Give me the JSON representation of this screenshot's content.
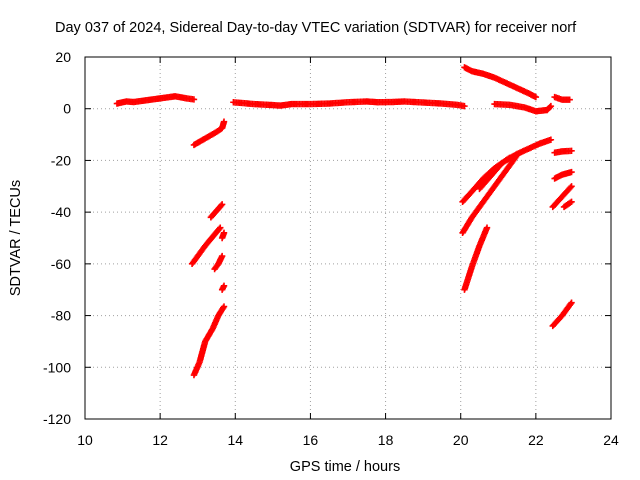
{
  "chart_data": {
    "type": "scatter",
    "title": "Day 037 of 2024, Sidereal Day-to-day VTEC variation (SDTVAR) for receiver norf",
    "xlabel": "GPS time / hours",
    "ylabel": "SDTVAR / TECUs",
    "xlim": [
      10,
      24
    ],
    "ylim": [
      -120,
      20
    ],
    "x_ticks": [
      10,
      12,
      14,
      16,
      18,
      20,
      22,
      24
    ],
    "y_ticks": [
      -120,
      -100,
      -80,
      -60,
      -40,
      -20,
      0,
      20
    ],
    "x_tick_labels": [
      "10",
      "12",
      "14",
      "16",
      "18",
      "20",
      "22",
      "24"
    ],
    "y_tick_labels": [
      "-120",
      "-100",
      "-80",
      "-60",
      "-40",
      "-20",
      "0",
      "20"
    ],
    "grid": true,
    "grid_style": "dotted",
    "marker": "plus",
    "series": [
      {
        "color": "#ff0000",
        "segments": [
          [
            [
              10.85,
              2.0
            ],
            [
              11.1,
              2.8
            ],
            [
              11.3,
              2.6
            ],
            [
              11.5,
              3.0
            ],
            [
              11.8,
              3.6
            ],
            [
              12.1,
              4.2
            ],
            [
              12.4,
              4.8
            ],
            [
              12.7,
              4.0
            ],
            [
              12.9,
              3.6
            ]
          ],
          [
            [
              12.9,
              -14
            ],
            [
              13.2,
              -11.5
            ],
            [
              13.5,
              -9
            ],
            [
              13.65,
              -7.5
            ],
            [
              13.7,
              -5
            ]
          ],
          [
            [
              12.85,
              -60
            ],
            [
              13.0,
              -57
            ],
            [
              13.2,
              -53
            ],
            [
              13.4,
              -49.5
            ],
            [
              13.6,
              -46
            ]
          ],
          [
            [
              13.35,
              -42
            ],
            [
              13.5,
              -39.5
            ],
            [
              13.65,
              -37
            ]
          ],
          [
            [
              13.45,
              -62
            ],
            [
              13.55,
              -60
            ],
            [
              13.65,
              -57
            ]
          ],
          [
            [
              13.65,
              -50
            ],
            [
              13.7,
              -48
            ]
          ],
          [
            [
              12.9,
              -103
            ],
            [
              13.05,
              -98
            ],
            [
              13.2,
              -90
            ],
            [
              13.4,
              -85
            ],
            [
              13.55,
              -80
            ],
            [
              13.7,
              -76.5
            ]
          ],
          [
            [
              13.65,
              -70
            ],
            [
              13.7,
              -68.5
            ]
          ],
          [
            [
              13.95,
              2.5
            ],
            [
              14.5,
              1.8
            ],
            [
              15.0,
              1.4
            ],
            [
              15.2,
              1.2
            ],
            [
              15.5,
              1.8
            ],
            [
              16.0,
              1.8
            ],
            [
              16.5,
              2.0
            ],
            [
              17.0,
              2.5
            ],
            [
              17.5,
              2.8
            ],
            [
              17.8,
              2.5
            ],
            [
              18.2,
              2.6
            ],
            [
              18.5,
              2.8
            ],
            [
              19.0,
              2.4
            ],
            [
              19.5,
              2.0
            ],
            [
              19.9,
              1.5
            ],
            [
              20.1,
              1.0
            ]
          ],
          [
            [
              20.1,
              16
            ],
            [
              20.3,
              14.5
            ],
            [
              20.6,
              13.5
            ],
            [
              20.9,
              12.0
            ],
            [
              21.2,
              10.0
            ],
            [
              21.5,
              8.0
            ],
            [
              21.8,
              6.0
            ],
            [
              22.0,
              4.5
            ]
          ],
          [
            [
              20.9,
              1.8
            ],
            [
              21.3,
              1.5
            ],
            [
              21.7,
              0.5
            ],
            [
              22.0,
              -1.0
            ],
            [
              22.3,
              -0.5
            ],
            [
              22.4,
              1.0
            ]
          ],
          [
            [
              22.5,
              4.5
            ],
            [
              22.7,
              3.5
            ],
            [
              22.9,
              3.5
            ]
          ],
          [
            [
              20.05,
              -36
            ],
            [
              20.3,
              -32
            ],
            [
              20.6,
              -27
            ],
            [
              20.9,
              -23
            ],
            [
              21.2,
              -20
            ],
            [
              21.5,
              -17.5
            ],
            [
              21.8,
              -15.5
            ],
            [
              22.1,
              -13.5
            ],
            [
              22.4,
              -12
            ]
          ],
          [
            [
              20.05,
              -48
            ],
            [
              20.3,
              -42
            ],
            [
              20.6,
              -36
            ],
            [
              20.9,
              -30
            ],
            [
              21.2,
              -24
            ],
            [
              21.5,
              -18
            ]
          ],
          [
            [
              20.1,
              -70
            ],
            [
              20.3,
              -61
            ],
            [
              20.5,
              -53
            ],
            [
              20.7,
              -46
            ]
          ],
          [
            [
              20.5,
              -31
            ],
            [
              20.8,
              -26
            ],
            [
              21.1,
              -21
            ],
            [
              21.3,
              -19
            ]
          ],
          [
            [
              22.5,
              -17
            ],
            [
              22.7,
              -16.5
            ],
            [
              22.95,
              -16.3
            ]
          ],
          [
            [
              22.5,
              -27
            ],
            [
              22.7,
              -25.5
            ],
            [
              22.95,
              -24.5
            ]
          ],
          [
            [
              22.45,
              -38
            ],
            [
              22.7,
              -34
            ],
            [
              22.95,
              -30
            ]
          ],
          [
            [
              22.75,
              -38
            ],
            [
              22.95,
              -36
            ]
          ],
          [
            [
              22.45,
              -84
            ],
            [
              22.7,
              -80
            ],
            [
              22.95,
              -75
            ]
          ]
        ]
      }
    ]
  }
}
